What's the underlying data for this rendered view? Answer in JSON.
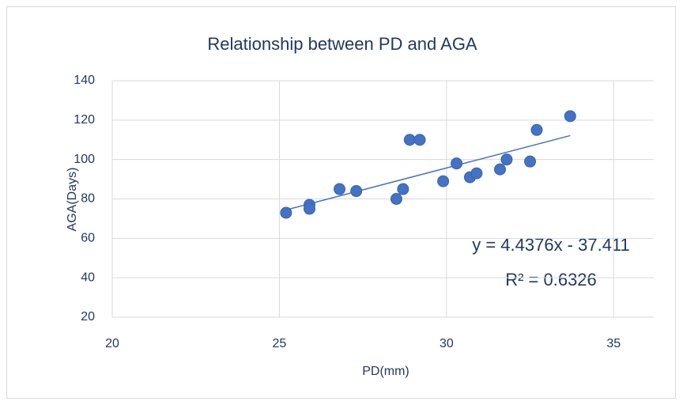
{
  "chart_data": {
    "type": "scatter",
    "title": "Relationship between PD and AGA",
    "xlabel": "PD(mm)",
    "ylabel": "AGA(Days)",
    "series": [
      {
        "color": "#4472c4",
        "x": [
          25.2,
          25.9,
          25.9,
          26.8,
          27.3,
          28.5,
          28.7,
          28.9,
          29.2,
          29.9,
          30.3,
          30.7,
          30.9,
          31.6,
          31.8,
          32.5,
          32.7,
          33.7
        ],
        "values": [
          73,
          77,
          75,
          85,
          84,
          80,
          85,
          110,
          110,
          89,
          98,
          91,
          93,
          95,
          100,
          99,
          115,
          122
        ]
      }
    ],
    "trendline": {
      "slope": 4.4376,
      "intercept": -37.411,
      "equation": "y = 4.4376x - 37.411",
      "r_squared": "R² = 0.6326",
      "color": "#4472c4"
    },
    "xlim": [
      20,
      36.2
    ],
    "xticks": [
      20,
      25,
      30,
      35
    ],
    "ylim": [
      20,
      140
    ],
    "yticks": [
      20,
      40,
      60,
      80,
      100,
      120,
      140
    ],
    "grid": true
  }
}
